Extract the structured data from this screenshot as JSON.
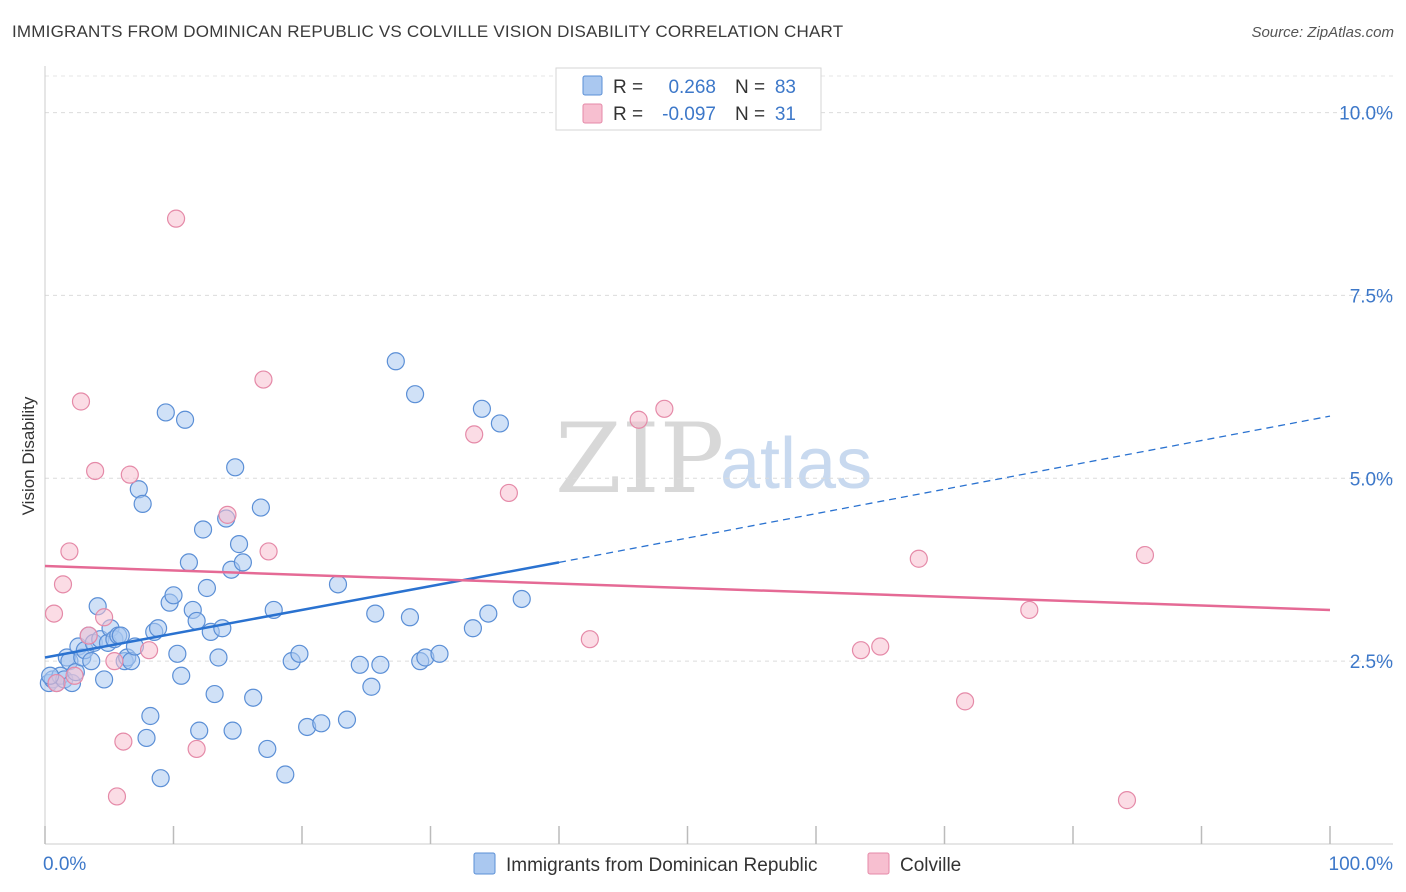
{
  "title": "IMMIGRANTS FROM DOMINICAN REPUBLIC VS COLVILLE VISION DISABILITY CORRELATION CHART",
  "source": "Source: ZipAtlas.com",
  "colors": {
    "blue_fill": "#aac8f0",
    "blue_stroke": "#5b8fd6",
    "blue_line": "#2a72d0",
    "pink_fill": "#f7bfd0",
    "pink_stroke": "#e58aa8",
    "pink_line": "#e56a95",
    "label_blue": "#3d78c9"
  },
  "legend": {
    "rows": [
      {
        "r_label": "R =",
        "r_value": "0.268",
        "n_label": "N =",
        "n_value": "83"
      },
      {
        "r_label": "R =",
        "r_value": "-0.097",
        "n_label": "N =",
        "n_value": "31"
      }
    ]
  },
  "watermark": {
    "zip": "ZIP",
    "atlas": "atlas"
  },
  "chart_data": {
    "type": "scatter",
    "title": "IMMIGRANTS FROM DOMINICAN REPUBLIC VS COLVILLE VISION DISABILITY CORRELATION CHART",
    "xlabel": "",
    "ylabel": "Vision Disability",
    "xlim": [
      0,
      100
    ],
    "ylim": [
      0,
      10.5
    ],
    "x_tick_labels": [
      "0.0%",
      "100.0%"
    ],
    "y_ticks": [
      2.5,
      5.0,
      7.5,
      10.0
    ],
    "y_tick_labels": [
      "2.5%",
      "5.0%",
      "7.5%",
      "10.0%"
    ],
    "grid": true,
    "legend_position": "top-center",
    "series": [
      {
        "name": "Immigrants from Dominican Republic",
        "color": "blue",
        "R": 0.268,
        "N": 83,
        "trend": {
          "x0": 0,
          "y0": 2.55,
          "x1": 40,
          "y1": 3.85,
          "dash_x1": 100,
          "dash_y1": 5.85
        },
        "points": [
          [
            0.3,
            2.2
          ],
          [
            0.6,
            2.25
          ],
          [
            0.9,
            2.2
          ],
          [
            1.2,
            2.3
          ],
          [
            1.5,
            2.25
          ],
          [
            1.7,
            2.55
          ],
          [
            1.9,
            2.5
          ],
          [
            2.1,
            2.2
          ],
          [
            2.4,
            2.35
          ],
          [
            2.6,
            2.7
          ],
          [
            2.9,
            2.55
          ],
          [
            3.1,
            2.65
          ],
          [
            3.4,
            2.85
          ],
          [
            3.6,
            2.5
          ],
          [
            3.8,
            2.75
          ],
          [
            4.1,
            3.25
          ],
          [
            4.3,
            2.8
          ],
          [
            4.6,
            2.25
          ],
          [
            4.9,
            2.75
          ],
          [
            5.1,
            2.95
          ],
          [
            5.4,
            2.8
          ],
          [
            5.7,
            2.85
          ],
          [
            5.9,
            2.85
          ],
          [
            6.2,
            2.5
          ],
          [
            6.4,
            2.55
          ],
          [
            6.7,
            2.5
          ],
          [
            7.0,
            2.7
          ],
          [
            7.3,
            4.85
          ],
          [
            7.6,
            4.65
          ],
          [
            7.9,
            1.45
          ],
          [
            8.2,
            1.75
          ],
          [
            8.5,
            2.9
          ],
          [
            8.8,
            2.95
          ],
          [
            9.0,
            0.9
          ],
          [
            9.4,
            5.9
          ],
          [
            9.7,
            3.3
          ],
          [
            10.0,
            3.4
          ],
          [
            10.3,
            2.6
          ],
          [
            10.6,
            2.3
          ],
          [
            10.9,
            5.8
          ],
          [
            11.2,
            3.85
          ],
          [
            11.5,
            3.2
          ],
          [
            11.8,
            3.05
          ],
          [
            12.0,
            1.55
          ],
          [
            12.3,
            4.3
          ],
          [
            12.6,
            3.5
          ],
          [
            12.9,
            2.9
          ],
          [
            13.2,
            2.05
          ],
          [
            13.5,
            2.55
          ],
          [
            13.8,
            2.95
          ],
          [
            14.1,
            4.45
          ],
          [
            14.5,
            3.75
          ],
          [
            14.8,
            5.15
          ],
          [
            15.1,
            4.1
          ],
          [
            15.4,
            3.85
          ],
          [
            14.6,
            1.55
          ],
          [
            16.2,
            2.0
          ],
          [
            16.8,
            4.6
          ],
          [
            17.3,
            1.3
          ],
          [
            17.8,
            3.2
          ],
          [
            18.7,
            0.95
          ],
          [
            19.2,
            2.5
          ],
          [
            19.8,
            2.6
          ],
          [
            20.4,
            1.6
          ],
          [
            21.5,
            1.65
          ],
          [
            22.8,
            3.55
          ],
          [
            23.5,
            1.7
          ],
          [
            24.5,
            2.45
          ],
          [
            25.4,
            2.15
          ],
          [
            25.7,
            3.15
          ],
          [
            26.1,
            2.45
          ],
          [
            27.3,
            6.6
          ],
          [
            28.4,
            3.1
          ],
          [
            28.8,
            6.15
          ],
          [
            29.2,
            2.5
          ],
          [
            29.6,
            2.55
          ],
          [
            30.7,
            2.6
          ],
          [
            33.3,
            2.95
          ],
          [
            34.0,
            5.95
          ],
          [
            34.5,
            3.15
          ],
          [
            35.4,
            5.75
          ],
          [
            37.1,
            3.35
          ],
          [
            0.4,
            2.3
          ]
        ]
      },
      {
        "name": "Colville",
        "color": "pink",
        "R": -0.097,
        "N": 31,
        "trend": {
          "x0": 0,
          "y0": 3.8,
          "x1": 100,
          "y1": 3.2
        },
        "points": [
          [
            0.7,
            3.15
          ],
          [
            1.4,
            3.55
          ],
          [
            1.9,
            4.0
          ],
          [
            2.3,
            2.3
          ],
          [
            2.8,
            6.05
          ],
          [
            3.4,
            2.85
          ],
          [
            3.9,
            5.1
          ],
          [
            4.6,
            3.1
          ],
          [
            5.4,
            2.5
          ],
          [
            5.6,
            0.65
          ],
          [
            6.1,
            1.4
          ],
          [
            6.6,
            5.05
          ],
          [
            8.1,
            2.65
          ],
          [
            10.2,
            8.55
          ],
          [
            11.8,
            1.3
          ],
          [
            14.2,
            4.5
          ],
          [
            17.0,
            6.35
          ],
          [
            17.4,
            4.0
          ],
          [
            33.4,
            5.6
          ],
          [
            36.1,
            4.8
          ],
          [
            42.4,
            2.8
          ],
          [
            46.2,
            5.8
          ],
          [
            48.2,
            5.95
          ],
          [
            63.5,
            2.65
          ],
          [
            65.0,
            2.7
          ],
          [
            68.0,
            3.9
          ],
          [
            71.6,
            1.95
          ],
          [
            76.6,
            3.2
          ],
          [
            84.2,
            0.6
          ],
          [
            85.6,
            3.95
          ],
          [
            0.9,
            2.2
          ]
        ]
      }
    ]
  },
  "bottom_legend": [
    {
      "label": "Immigrants from Dominican Republic",
      "color": "blue"
    },
    {
      "label": "Colville",
      "color": "pink"
    }
  ]
}
